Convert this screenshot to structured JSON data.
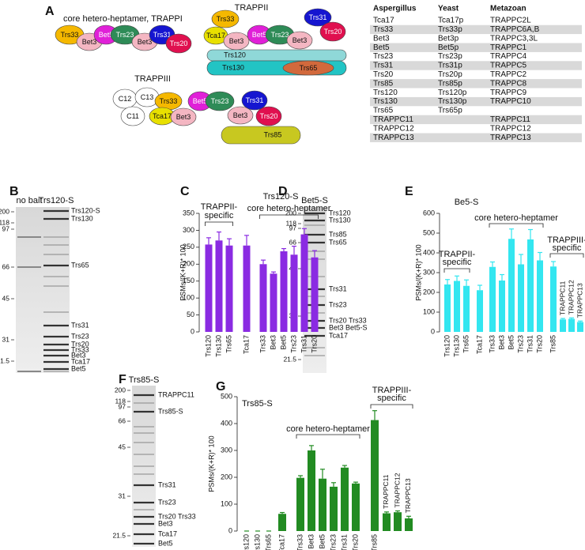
{
  "panels": [
    "A",
    "B",
    "C",
    "D",
    "E",
    "F",
    "G"
  ],
  "diagrams": {
    "trappi": {
      "title": "core hetero-heptamer, TRAPPI",
      "subunits": [
        "Trs33",
        "Bet3",
        "Bet5",
        "Trs23",
        "Bet3",
        "Trs31",
        "Trs20"
      ]
    },
    "trappii": {
      "title": "TRAPPII",
      "subunits": [
        "Trs33",
        "Tca17",
        "Bet3",
        "Bet5",
        "Trs23",
        "Bet3",
        "Trs31",
        "Trs20",
        "Trs120",
        "Trs130",
        "Trs65"
      ]
    },
    "trappiii": {
      "title": "TRAPPIII",
      "subunits": [
        "C12",
        "C13",
        "C11",
        "Trs33",
        "Tca17",
        "Bet3",
        "Bet5",
        "Trs23",
        "Bet3",
        "Trs31",
        "Trs20",
        "Trs85"
      ]
    }
  },
  "table": {
    "header": [
      "Aspergillus",
      "Yeast",
      "Metazoan"
    ],
    "rows": [
      [
        "Tca17",
        "Tca17p",
        "TRAPPC2L"
      ],
      [
        "Trs33",
        "Trs33p",
        "TRAPPC6A,B"
      ],
      [
        "Bet3",
        "Bet3p",
        "TRAPPC3,3L"
      ],
      [
        "Bet5",
        "Bet5p",
        "TRAPPC1"
      ],
      [
        "Trs23",
        "Trs23p",
        "TRAPPC4"
      ],
      [
        "Trs31",
        "Trs31p",
        "TRAPPC5"
      ],
      [
        "Trs20",
        "Trs20p",
        "TRAPPC2"
      ],
      [
        "Trs85",
        "Trs85p",
        "TRAPPC8"
      ],
      [
        "Trs120",
        "Trs120p",
        "TRAPPC9"
      ],
      [
        "Trs130",
        "Trs130p",
        "TRAPPC10"
      ],
      [
        "Trs65",
        "Trs65p",
        null
      ],
      [
        "TRAPPC11",
        null,
        "TRAPPC11"
      ],
      [
        "TRAPPC12",
        null,
        "TRAPPC12"
      ],
      [
        "TRAPPC13",
        null,
        "TRAPPC13"
      ]
    ]
  },
  "gels": [
    {
      "lanes": [
        "no bait",
        "Trs120-S"
      ],
      "markers": [
        200,
        118,
        97,
        66,
        45,
        31,
        21.5
      ],
      "bands": [
        "Trs120-S",
        "Trs130",
        "Trs65",
        "Trs31",
        "Trs23",
        "Trs20",
        "Trs33",
        "Bet3",
        "Tca17",
        "Bet5"
      ]
    },
    {
      "lanes": [
        "Bet5-S"
      ],
      "markers": [
        200,
        118,
        97,
        66,
        45,
        31,
        21.5
      ],
      "bands": [
        "Trs120",
        "Trs130",
        "Trs85",
        "Trs65",
        "Trs31",
        "Trs23",
        "Trs20 Trs33",
        "Bet3 Bet5-S",
        "Tca17"
      ]
    },
    {
      "lanes": [
        "Trs85-S"
      ],
      "markers": [
        200,
        118,
        97,
        66,
        45,
        31,
        21.5
      ],
      "bands": [
        "TRAPPC11",
        "Trs85-S",
        "Trs31",
        "Trs23",
        "Trs20 Trs33",
        "Bet3",
        "Tca17",
        "Bet5"
      ]
    }
  ],
  "chart_data": [
    {
      "type": "bar",
      "title": "Trs120-S",
      "y_label": "PSMs/(K+R)* 100",
      "color": "#8a2be2",
      "categories": [
        "Trs120",
        "Trs130",
        "Trs65",
        "Tca17",
        "Trs33",
        "Bet3",
        "Bet5",
        "Trs23",
        "Trs31",
        "Trs20"
      ],
      "values": [
        258,
        270,
        255,
        255,
        200,
        172,
        238,
        228,
        288,
        220
      ],
      "errors": [
        20,
        25,
        20,
        30,
        12,
        5,
        8,
        25,
        17,
        20
      ],
      "ylim": [
        0,
        350
      ],
      "yticks": [
        0,
        50,
        100,
        150,
        200,
        250,
        300,
        350
      ],
      "annotations": [
        {
          "lines": [
            "TRAPPII-",
            "specific"
          ]
        },
        {
          "lines": [
            "core hetero-heptamer"
          ]
        }
      ]
    },
    {
      "type": "bar",
      "title": "Be5-S",
      "y_label": "PSMs/(K+R)* 100",
      "color": "#33e6f0",
      "categories": [
        "Trs120",
        "Trs130",
        "Trs65",
        "Tca17",
        "Trs33",
        "Bet3",
        "Bet5",
        "Trs23",
        "Trs31",
        "Trs20",
        "Trs85",
        "TRAPPC11",
        "TRAPPC12",
        "TRAPPC13"
      ],
      "values": [
        240,
        258,
        233,
        211,
        329,
        260,
        471,
        342,
        468,
        362,
        331,
        63,
        66,
        50
      ],
      "errors": [
        25,
        25,
        30,
        25,
        25,
        30,
        50,
        50,
        50,
        40,
        25,
        5,
        5,
        5
      ],
      "ylim": [
        0,
        600
      ],
      "yticks": [
        0,
        100,
        200,
        300,
        400,
        500,
        600
      ],
      "annotations": [
        {
          "lines": [
            "TRAPPII-",
            "specific"
          ]
        },
        {
          "lines": [
            "core hetero-heptamer"
          ]
        },
        {
          "lines": [
            "TRAPPIII-",
            "specific"
          ]
        }
      ]
    },
    {
      "type": "bar",
      "title": "Trs85-S",
      "y_label": "PSMs/(K+R)* 100",
      "color": "#228b22",
      "categories": [
        "Trs120",
        "Trs130",
        "Trs65",
        "Tca17",
        "Trs33",
        "Bet3",
        "Bet5",
        "Trs23",
        "Trs31",
        "Trs20",
        "Trs85",
        "TRAPPC11",
        "TRAPPC12",
        "TRAPPC13"
      ],
      "values": [
        0,
        0,
        0,
        64,
        198,
        300,
        195,
        165,
        236,
        177,
        413,
        66,
        70,
        47
      ],
      "errors": [
        0,
        0,
        0,
        5,
        8,
        18,
        35,
        15,
        8,
        5,
        35,
        5,
        5,
        8
      ],
      "ylim": [
        0,
        500
      ],
      "yticks": [
        0,
        100,
        200,
        300,
        400,
        500
      ],
      "annotations": [
        {
          "lines": [
            "core hetero-heptamer"
          ]
        },
        {
          "lines": [
            "TRAPPIII-",
            "specific"
          ]
        }
      ]
    }
  ]
}
